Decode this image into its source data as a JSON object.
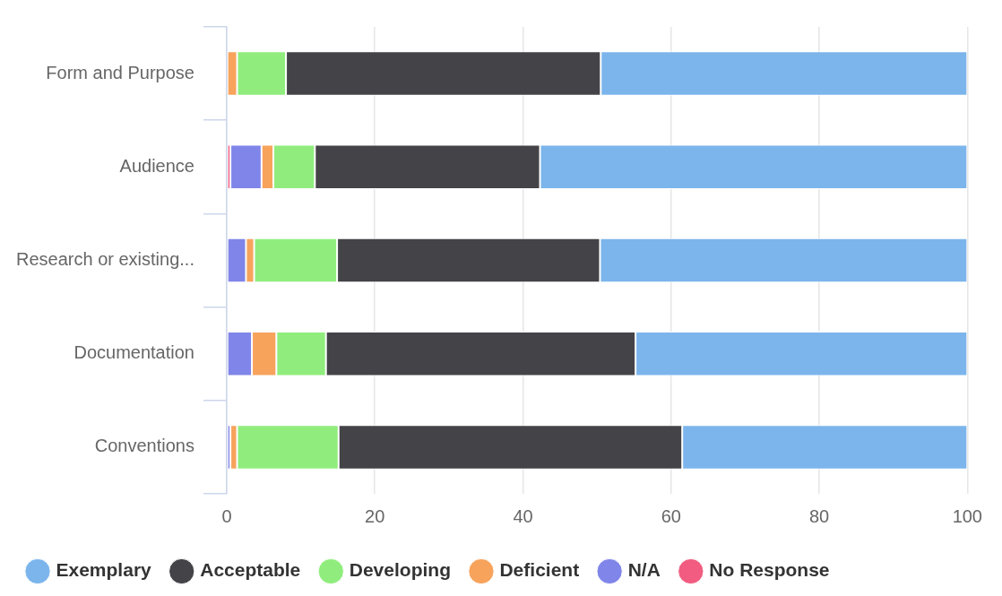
{
  "chart_data": {
    "type": "bar",
    "orientation": "horizontal",
    "stacked": true,
    "categories": [
      "Form and Purpose",
      "Audience",
      "Research or existing...",
      "Documentation",
      "Conventions"
    ],
    "series": [
      {
        "name": "No Response",
        "color": "#f15c80",
        "values": [
          null,
          0.5,
          null,
          null,
          null
        ]
      },
      {
        "name": "N/A",
        "color": "#8085e9",
        "values": [
          null,
          4.2,
          2.6,
          3.4,
          0.5
        ]
      },
      {
        "name": "Deficient",
        "color": "#f7a35c",
        "values": [
          1.4,
          1.6,
          1.1,
          3.3,
          0.9
        ]
      },
      {
        "name": "Developing",
        "color": "#90ed7d",
        "values": [
          6.6,
          5.6,
          11.2,
          6.7,
          13.7
        ]
      },
      {
        "name": "Acceptable",
        "color": "#434348",
        "values": [
          42.5,
          30.4,
          35.5,
          41.8,
          46.4
        ]
      },
      {
        "name": "Exemplary",
        "color": "#7cb5ec",
        "values": [
          49.5,
          57.7,
          49.6,
          44.8,
          38.5
        ]
      }
    ],
    "xlim": [
      0,
      100
    ],
    "xticks": [
      0,
      20,
      40,
      60,
      80,
      100
    ],
    "grid": "x",
    "legend": "bottom"
  }
}
